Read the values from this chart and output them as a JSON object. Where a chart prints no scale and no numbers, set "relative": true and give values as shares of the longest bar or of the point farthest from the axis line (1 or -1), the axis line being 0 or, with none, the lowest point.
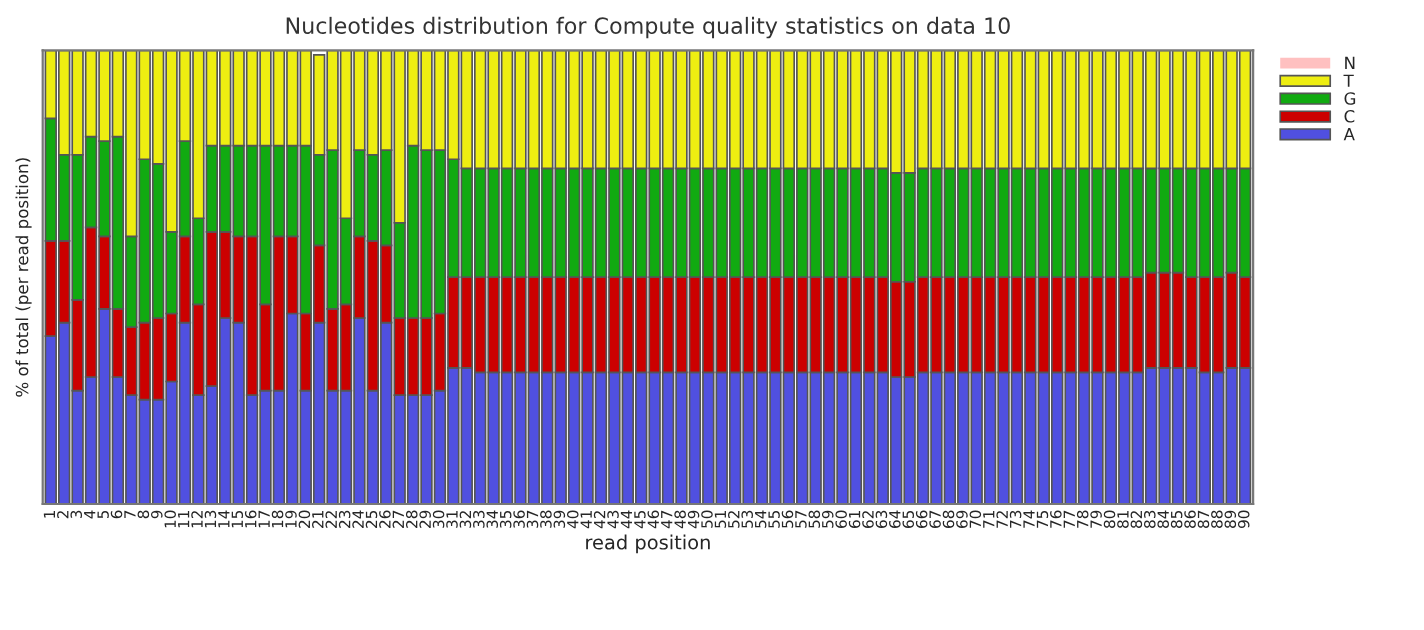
{
  "chart_data": {
    "type": "bar",
    "title": "Nucleotides distribution for Compute quality statistics on data 10",
    "xlabel": "read position",
    "ylabel": "% of total (per read position)",
    "categories": [
      "1",
      "2",
      "3",
      "4",
      "5",
      "6",
      "7",
      "8",
      "9",
      "10",
      "11",
      "12",
      "13",
      "14",
      "15",
      "16",
      "17",
      "18",
      "19",
      "20",
      "21",
      "22",
      "23",
      "24",
      "25",
      "26",
      "27",
      "28",
      "29",
      "30",
      "31",
      "32",
      "33",
      "34",
      "35",
      "36",
      "37",
      "38",
      "39",
      "40",
      "41",
      "42",
      "43",
      "44",
      "45",
      "46",
      "47",
      "48",
      "49",
      "50",
      "51",
      "52",
      "53",
      "54",
      "55",
      "56",
      "57",
      "58",
      "59",
      "60",
      "61",
      "62",
      "63",
      "64",
      "65",
      "66",
      "67",
      "68",
      "69",
      "70",
      "71",
      "72",
      "73",
      "74",
      "75",
      "76",
      "77",
      "78",
      "79",
      "80",
      "81",
      "82",
      "83",
      "84",
      "85",
      "86",
      "87",
      "88",
      "89",
      "90"
    ],
    "relative": true,
    "stacked": true,
    "legend": "top right",
    "grid": false,
    "series": [
      {
        "name": "A",
        "color": "#5050e0",
        "values": [
          0.37,
          0.4,
          0.25,
          0.28,
          0.43,
          0.28,
          0.24,
          0.23,
          0.23,
          0.27,
          0.4,
          0.24,
          0.26,
          0.41,
          0.4,
          0.24,
          0.25,
          0.25,
          0.42,
          0.25,
          0.4,
          0.25,
          0.25,
          0.41,
          0.25,
          0.4,
          0.24,
          0.24,
          0.24,
          0.25,
          0.3,
          0.3,
          0.29,
          0.29,
          0.29,
          0.29,
          0.29,
          0.29,
          0.29,
          0.29,
          0.29,
          0.29,
          0.29,
          0.29,
          0.29,
          0.29,
          0.29,
          0.29,
          0.29,
          0.29,
          0.29,
          0.29,
          0.29,
          0.29,
          0.29,
          0.29,
          0.29,
          0.29,
          0.29,
          0.29,
          0.29,
          0.29,
          0.29,
          0.28,
          0.28,
          0.29,
          0.29,
          0.29,
          0.29,
          0.29,
          0.29,
          0.29,
          0.29,
          0.29,
          0.29,
          0.29,
          0.29,
          0.29,
          0.29,
          0.29,
          0.29,
          0.29,
          0.3,
          0.3,
          0.3,
          0.3,
          0.29,
          0.29,
          0.3,
          0.3
        ]
      },
      {
        "name": "C",
        "color": "#cc0000",
        "values": [
          0.21,
          0.18,
          0.2,
          0.33,
          0.16,
          0.15,
          0.15,
          0.17,
          0.18,
          0.15,
          0.19,
          0.2,
          0.34,
          0.19,
          0.19,
          0.35,
          0.19,
          0.34,
          0.17,
          0.17,
          0.17,
          0.18,
          0.19,
          0.18,
          0.33,
          0.17,
          0.17,
          0.17,
          0.17,
          0.17,
          0.2,
          0.2,
          0.21,
          0.21,
          0.21,
          0.21,
          0.21,
          0.21,
          0.21,
          0.21,
          0.21,
          0.21,
          0.21,
          0.21,
          0.21,
          0.21,
          0.21,
          0.21,
          0.21,
          0.21,
          0.21,
          0.21,
          0.21,
          0.21,
          0.21,
          0.21,
          0.21,
          0.21,
          0.21,
          0.21,
          0.21,
          0.21,
          0.21,
          0.21,
          0.21,
          0.21,
          0.21,
          0.21,
          0.21,
          0.21,
          0.21,
          0.21,
          0.21,
          0.21,
          0.21,
          0.21,
          0.21,
          0.21,
          0.21,
          0.21,
          0.21,
          0.21,
          0.21,
          0.21,
          0.21,
          0.2,
          0.21,
          0.21,
          0.21,
          0.2
        ]
      },
      {
        "name": "G",
        "color": "#11aa11",
        "values": [
          0.27,
          0.19,
          0.32,
          0.2,
          0.21,
          0.38,
          0.2,
          0.36,
          0.34,
          0.18,
          0.21,
          0.19,
          0.19,
          0.19,
          0.2,
          0.2,
          0.35,
          0.2,
          0.2,
          0.37,
          0.2,
          0.35,
          0.19,
          0.19,
          0.19,
          0.21,
          0.21,
          0.38,
          0.37,
          0.36,
          0.26,
          0.24,
          0.24,
          0.24,
          0.24,
          0.24,
          0.24,
          0.24,
          0.24,
          0.24,
          0.24,
          0.24,
          0.24,
          0.24,
          0.24,
          0.24,
          0.24,
          0.24,
          0.24,
          0.24,
          0.24,
          0.24,
          0.24,
          0.24,
          0.24,
          0.24,
          0.24,
          0.24,
          0.24,
          0.24,
          0.24,
          0.24,
          0.24,
          0.24,
          0.24,
          0.24,
          0.24,
          0.24,
          0.24,
          0.24,
          0.24,
          0.24,
          0.24,
          0.24,
          0.24,
          0.24,
          0.24,
          0.24,
          0.24,
          0.24,
          0.24,
          0.24,
          0.23,
          0.23,
          0.23,
          0.24,
          0.24,
          0.24,
          0.23,
          0.24
        ]
      },
      {
        "name": "T",
        "color": "#eeee11",
        "values": [
          0.15,
          0.23,
          0.23,
          0.19,
          0.2,
          0.19,
          0.41,
          0.24,
          0.25,
          0.4,
          0.2,
          0.37,
          0.21,
          0.21,
          0.21,
          0.21,
          0.21,
          0.21,
          0.21,
          0.21,
          0.22,
          0.22,
          0.37,
          0.22,
          0.23,
          0.22,
          0.38,
          0.21,
          0.22,
          0.22,
          0.24,
          0.26,
          0.26,
          0.26,
          0.26,
          0.26,
          0.26,
          0.26,
          0.26,
          0.26,
          0.26,
          0.26,
          0.26,
          0.26,
          0.26,
          0.26,
          0.26,
          0.26,
          0.26,
          0.26,
          0.26,
          0.26,
          0.26,
          0.26,
          0.26,
          0.26,
          0.26,
          0.26,
          0.26,
          0.26,
          0.26,
          0.26,
          0.26,
          0.27,
          0.27,
          0.26,
          0.26,
          0.26,
          0.26,
          0.26,
          0.26,
          0.26,
          0.26,
          0.26,
          0.26,
          0.26,
          0.26,
          0.26,
          0.26,
          0.26,
          0.26,
          0.26,
          0.26,
          0.26,
          0.26,
          0.26,
          0.26,
          0.26,
          0.26,
          0.26
        ]
      },
      {
        "name": "N",
        "color": "#ffc0c0",
        "values": [
          0,
          0,
          0,
          0,
          0,
          0,
          0,
          0,
          0,
          0,
          0,
          0,
          0,
          0,
          0,
          0,
          0,
          0,
          0,
          0,
          0,
          0,
          0,
          0,
          0,
          0,
          0,
          0,
          0,
          0,
          0,
          0,
          0,
          0,
          0,
          0,
          0,
          0,
          0,
          0,
          0,
          0,
          0,
          0,
          0,
          0,
          0,
          0,
          0,
          0,
          0,
          0,
          0,
          0,
          0,
          0,
          0,
          0,
          0,
          0,
          0,
          0,
          0,
          0,
          0,
          0,
          0,
          0,
          0,
          0,
          0,
          0,
          0,
          0,
          0,
          0,
          0,
          0,
          0,
          0,
          0,
          0,
          0,
          0,
          0,
          0,
          0,
          0,
          0,
          0
        ]
      }
    ]
  }
}
